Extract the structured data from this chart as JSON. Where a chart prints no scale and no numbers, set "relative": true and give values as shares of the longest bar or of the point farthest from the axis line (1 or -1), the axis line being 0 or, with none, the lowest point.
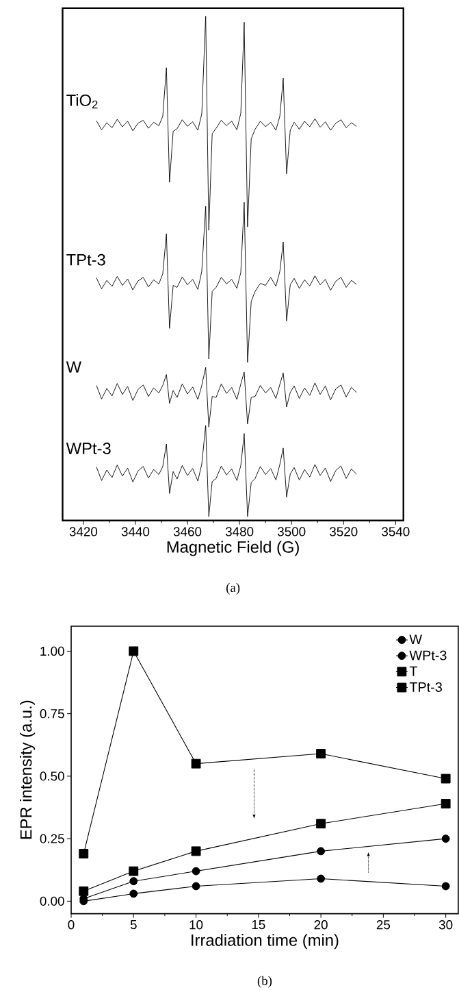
{
  "chart_data": [
    {
      "type": "line",
      "relative": true,
      "xlabel": "Magnetic Field (G)",
      "xlim": [
        3412,
        3543
      ],
      "xticks": [
        3420,
        3440,
        3460,
        3480,
        3500,
        3520,
        3540
      ],
      "annotations": [
        "(a)"
      ],
      "x": [
        3425,
        3427,
        3429,
        3431,
        3433,
        3435,
        3437,
        3439,
        3441,
        3443,
        3445,
        3447,
        3449,
        3450.5,
        3451.9,
        3453.1,
        3454.5,
        3456,
        3458,
        3460,
        3462,
        3464,
        3465.5,
        3467,
        3468.2,
        3469.5,
        3471,
        3473,
        3475,
        3477,
        3479,
        3480.5,
        3481.8,
        3483.1,
        3484.5,
        3486,
        3488,
        3490,
        3492,
        3494,
        3495.5,
        3496.8,
        3498.1,
        3499.5,
        3501,
        3503,
        3505,
        3507,
        3509,
        3511,
        3513,
        3515,
        3517,
        3519,
        3521,
        3523,
        3525
      ],
      "series": [
        {
          "name": "TiO$_{2}$",
          "color": "#000000",
          "values": [
            0.791,
            0.773,
            0.787,
            0.777,
            0.794,
            0.779,
            0.79,
            0.771,
            0.786,
            0.792,
            0.776,
            0.788,
            0.781,
            0.8,
            0.897,
            0.668,
            0.77,
            0.775,
            0.793,
            0.78,
            0.789,
            0.772,
            0.805,
            1.0,
            0.572,
            0.765,
            0.776,
            0.792,
            0.781,
            0.79,
            0.773,
            0.806,
            0.988,
            0.579,
            0.755,
            0.774,
            0.79,
            0.779,
            0.788,
            0.772,
            0.8,
            0.876,
            0.685,
            0.772,
            0.788,
            0.774,
            0.79,
            0.779,
            0.795,
            0.778,
            0.789,
            0.772,
            0.786,
            0.793,
            0.777,
            0.787,
            0.78
          ]
        },
        {
          "name": "TPt-3",
          "color": "#000000",
          "values": [
            0.477,
            0.455,
            0.472,
            0.46,
            0.48,
            0.462,
            0.475,
            0.453,
            0.471,
            0.478,
            0.459,
            0.473,
            0.465,
            0.485,
            0.565,
            0.376,
            0.462,
            0.458,
            0.479,
            0.463,
            0.474,
            0.454,
            0.49,
            0.62,
            0.315,
            0.45,
            0.458,
            0.478,
            0.465,
            0.474,
            0.456,
            0.488,
            0.628,
            0.308,
            0.43,
            0.45,
            0.466,
            0.462,
            0.478,
            0.46,
            0.49,
            0.549,
            0.391,
            0.463,
            0.476,
            0.456,
            0.473,
            0.461,
            0.481,
            0.463,
            0.474,
            0.452,
            0.47,
            0.478,
            0.458,
            0.472,
            0.464
          ]
        },
        {
          "name": "W",
          "color": "#000000",
          "values": [
            0.262,
            0.235,
            0.256,
            0.241,
            0.266,
            0.244,
            0.26,
            0.232,
            0.254,
            0.263,
            0.24,
            0.257,
            0.247,
            0.262,
            0.284,
            0.226,
            0.252,
            0.238,
            0.265,
            0.245,
            0.259,
            0.234,
            0.262,
            0.298,
            0.179,
            0.24,
            0.238,
            0.265,
            0.246,
            0.258,
            0.234,
            0.265,
            0.289,
            0.185,
            0.238,
            0.24,
            0.262,
            0.247,
            0.258,
            0.236,
            0.264,
            0.287,
            0.219,
            0.248,
            0.261,
            0.236,
            0.257,
            0.242,
            0.267,
            0.244,
            0.261,
            0.233,
            0.255,
            0.263,
            0.239,
            0.258,
            0.248
          ]
        },
        {
          "name": "WPt-3",
          "color": "#000000",
          "values": [
            0.099,
            0.072,
            0.093,
            0.078,
            0.103,
            0.081,
            0.097,
            0.069,
            0.091,
            0.1,
            0.077,
            0.094,
            0.084,
            0.1,
            0.145,
            0.046,
            0.09,
            0.075,
            0.102,
            0.082,
            0.096,
            0.071,
            0.105,
            0.182,
            0.0,
            0.07,
            0.076,
            0.101,
            0.083,
            0.095,
            0.072,
            0.102,
            0.166,
            0.0,
            0.068,
            0.076,
            0.1,
            0.084,
            0.096,
            0.073,
            0.104,
            0.137,
            0.039,
            0.085,
            0.098,
            0.073,
            0.094,
            0.079,
            0.104,
            0.082,
            0.097,
            0.07,
            0.092,
            0.101,
            0.076,
            0.095,
            0.085
          ]
        }
      ]
    },
    {
      "type": "line",
      "xlabel": "Irradiation time (min)",
      "ylabel": "EPR intensity (a.u.)",
      "xlim": [
        0,
        31
      ],
      "ylim": [
        -0.05,
        1.1
      ],
      "xticks": [
        0,
        5,
        10,
        15,
        20,
        25,
        30
      ],
      "yticks": [
        {
          "value": 0,
          "label": "0.00"
        },
        {
          "value": 0.25,
          "label": "0.25"
        },
        {
          "value": 0.5,
          "label": "0.50"
        },
        {
          "value": 0.75,
          "label": "0.75"
        },
        {
          "value": 1,
          "label": "1.00"
        }
      ],
      "legend": "top right",
      "annotations": [
        "(b)"
      ],
      "x": [
        1,
        5,
        10,
        20,
        30
      ],
      "series": [
        {
          "name": "W",
          "color": "#000000",
          "marker": "circle",
          "values": [
            0.0,
            0.03,
            0.06,
            0.09,
            0.06
          ]
        },
        {
          "name": "WPt-3",
          "color": "#000000",
          "marker": "circle",
          "values": [
            0.01,
            0.08,
            0.12,
            0.2,
            0.25
          ]
        },
        {
          "name": "T",
          "color": "#000000",
          "marker": "square",
          "values": [
            0.19,
            1.0,
            0.55,
            0.59,
            0.49
          ]
        },
        {
          "name": "TPt-3",
          "color": "#000000",
          "marker": "square",
          "values": [
            0.04,
            0.12,
            0.2,
            0.31,
            0.39
          ]
        }
      ]
    }
  ]
}
